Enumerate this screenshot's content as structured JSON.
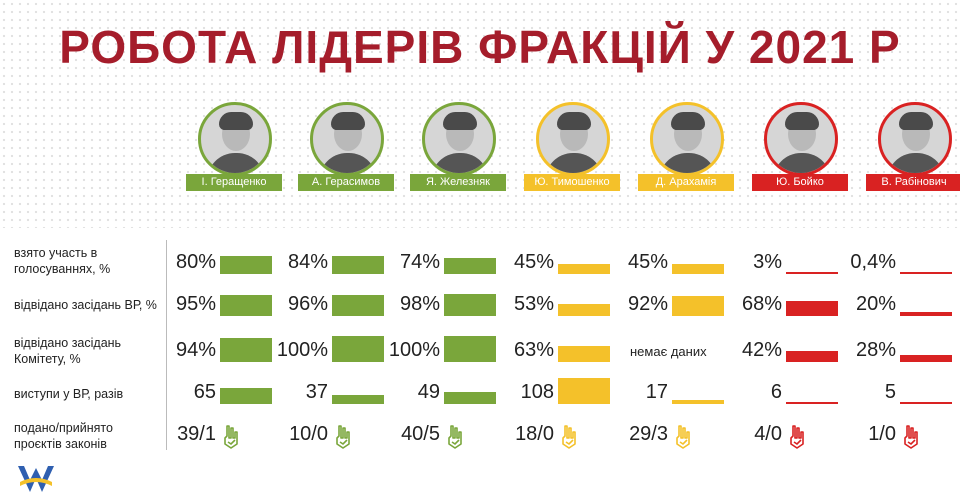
{
  "title": "РОБОТА ЛІДЕРІВ ФРАКЦІЙ У 2021 Р",
  "colors": {
    "green": "#7aa63b",
    "yellow": "#f4c12a",
    "red": "#d92222",
    "title": "#a51d2b"
  },
  "rows": [
    {
      "label": "взято участь в голосуваннях, %"
    },
    {
      "label": "відвідано засідань ВР, %"
    },
    {
      "label": "відвідано засідань Комітету, %"
    },
    {
      "label": "виступи у ВР, разів"
    },
    {
      "label": "подано/прийнято проєктів законів"
    }
  ],
  "leaders": [
    {
      "name": "І. Геращенко",
      "color": "green",
      "avatar_icon": "portrait-photo",
      "values": [
        "80%",
        "95%",
        "94%",
        "65",
        "39/1"
      ],
      "levels": [
        80,
        95,
        94,
        65
      ]
    },
    {
      "name": "А. Герасимов",
      "color": "green",
      "avatar_icon": "portrait-photo",
      "values": [
        "84%",
        "96%",
        "100%",
        "37",
        "10/0"
      ],
      "levels": [
        84,
        96,
        100,
        37
      ]
    },
    {
      "name": "Я. Железняк",
      "color": "green",
      "avatar_icon": "portrait-photo",
      "values": [
        "74%",
        "98%",
        "100%",
        "49",
        "40/5"
      ],
      "levels": [
        74,
        98,
        100,
        49
      ]
    },
    {
      "name": "Ю. Тимошенко",
      "color": "yellow",
      "avatar_icon": "portrait-photo",
      "values": [
        "45%",
        "53%",
        "63%",
        "108",
        "18/0"
      ],
      "levels": [
        45,
        53,
        63,
        108
      ]
    },
    {
      "name": "Д. Арахамія",
      "color": "yellow",
      "avatar_icon": "portrait-photo",
      "values": [
        "45%",
        "92%",
        "немає даних",
        "17",
        "29/3"
      ],
      "levels": [
        45,
        92,
        null,
        17
      ]
    },
    {
      "name": "Ю. Бойко",
      "color": "red",
      "avatar_icon": "portrait-photo",
      "values": [
        "3%",
        "68%",
        "42%",
        "6",
        "4/0"
      ],
      "levels": [
        3,
        68,
        42,
        6
      ]
    },
    {
      "name": "В. Рабінович",
      "color": "red",
      "avatar_icon": "portrait-photo",
      "values": [
        "0,4%",
        "20%",
        "28%",
        "5",
        "1/0"
      ],
      "levels": [
        0.4,
        20,
        28,
        5
      ]
    }
  ],
  "logo_icon": "chesno-logo-icon"
}
